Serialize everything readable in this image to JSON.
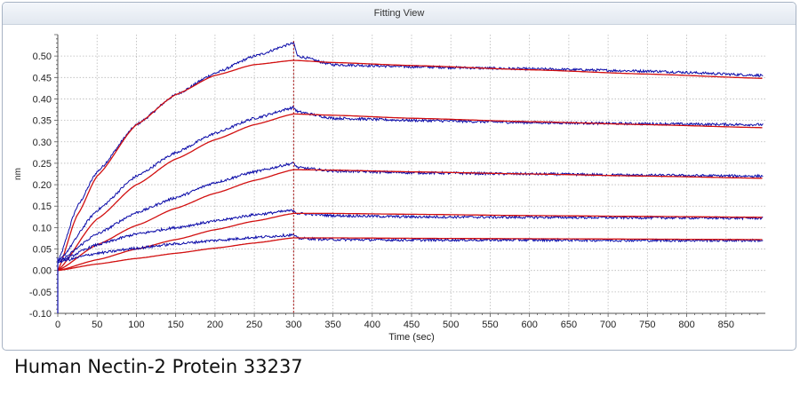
{
  "window": {
    "title": "Fitting View"
  },
  "caption": "Human Nectin-2 Protein 33237",
  "colors": {
    "measured": "#0a0aa8",
    "fit": "#d21010",
    "grid": "#b8b8b8",
    "marker": "#a00000"
  },
  "chart_data": {
    "type": "line",
    "title": "Fitting View",
    "xlabel": "Time (sec)",
    "ylabel": "nm",
    "xlim": [
      0,
      900
    ],
    "ylim": [
      -0.1,
      0.55
    ],
    "x_ticks": [
      0,
      50,
      100,
      150,
      200,
      250,
      300,
      350,
      400,
      450,
      500,
      550,
      600,
      650,
      700,
      750,
      800,
      850
    ],
    "y_ticks": [
      -0.1,
      -0.05,
      0.0,
      0.05,
      0.1,
      0.15,
      0.2,
      0.25,
      0.3,
      0.35,
      0.4,
      0.45,
      0.5
    ],
    "y_tick_labels": [
      "-0.10",
      "-0.05",
      "0.00",
      "0.05",
      "0.10",
      "0.15",
      "0.20",
      "0.25",
      "0.30",
      "0.35",
      "0.40",
      "0.45",
      "0.50"
    ],
    "grid": true,
    "marker_line_x": 300,
    "series": [
      {
        "kind": "measured",
        "x": [
          0,
          25,
          50,
          100,
          150,
          200,
          250,
          300,
          305,
          350,
          450,
          600,
          750,
          897
        ],
        "y": [
          0.02,
          0.15,
          0.23,
          0.34,
          0.41,
          0.46,
          0.5,
          0.53,
          0.5,
          0.48,
          0.475,
          0.47,
          0.465,
          0.455
        ]
      },
      {
        "kind": "fit",
        "x": [
          0,
          25,
          50,
          100,
          150,
          200,
          250,
          300,
          350,
          450,
          600,
          750,
          897
        ],
        "y": [
          0.0,
          0.13,
          0.22,
          0.34,
          0.41,
          0.455,
          0.48,
          0.49,
          0.485,
          0.478,
          0.468,
          0.458,
          0.448
        ]
      },
      {
        "kind": "measured",
        "x": [
          0,
          50,
          100,
          150,
          200,
          250,
          300,
          305,
          350,
          450,
          600,
          750,
          897
        ],
        "y": [
          0.02,
          0.14,
          0.22,
          0.275,
          0.32,
          0.355,
          0.38,
          0.37,
          0.355,
          0.35,
          0.345,
          0.342,
          0.34
        ]
      },
      {
        "kind": "fit",
        "x": [
          0,
          50,
          100,
          150,
          200,
          250,
          300,
          350,
          450,
          600,
          750,
          897
        ],
        "y": [
          0.0,
          0.12,
          0.2,
          0.26,
          0.305,
          0.34,
          0.365,
          0.362,
          0.355,
          0.347,
          0.34,
          0.333
        ]
      },
      {
        "kind": "measured",
        "x": [
          0,
          50,
          100,
          150,
          200,
          250,
          300,
          305,
          350,
          450,
          600,
          750,
          897
        ],
        "y": [
          0.02,
          0.085,
          0.135,
          0.17,
          0.205,
          0.23,
          0.25,
          0.24,
          0.232,
          0.228,
          0.225,
          0.222,
          0.22
        ]
      },
      {
        "kind": "fit",
        "x": [
          0,
          50,
          100,
          150,
          200,
          250,
          300,
          350,
          450,
          600,
          750,
          897
        ],
        "y": [
          0.0,
          0.06,
          0.105,
          0.145,
          0.18,
          0.21,
          0.235,
          0.234,
          0.23,
          0.225,
          0.22,
          0.215
        ]
      },
      {
        "kind": "measured",
        "x": [
          0,
          50,
          100,
          150,
          200,
          250,
          300,
          305,
          350,
          450,
          600,
          750,
          897
        ],
        "y": [
          0.02,
          0.06,
          0.085,
          0.1,
          0.115,
          0.13,
          0.14,
          0.133,
          0.128,
          0.125,
          0.124,
          0.123,
          0.122
        ]
      },
      {
        "kind": "fit",
        "x": [
          0,
          50,
          100,
          150,
          200,
          250,
          300,
          350,
          450,
          600,
          750,
          897
        ],
        "y": [
          0.0,
          0.025,
          0.05,
          0.072,
          0.095,
          0.115,
          0.133,
          0.133,
          0.131,
          0.128,
          0.126,
          0.124
        ]
      },
      {
        "kind": "measured",
        "x": [
          0,
          50,
          100,
          150,
          200,
          250,
          300,
          305,
          350,
          450,
          600,
          750,
          897
        ],
        "y": [
          0.02,
          0.04,
          0.052,
          0.062,
          0.07,
          0.077,
          0.083,
          0.075,
          0.072,
          0.071,
          0.071,
          0.07,
          0.07
        ]
      },
      {
        "kind": "fit",
        "x": [
          0,
          50,
          100,
          150,
          200,
          250,
          300,
          350,
          450,
          600,
          750,
          897
        ],
        "y": [
          0.0,
          0.015,
          0.028,
          0.04,
          0.052,
          0.064,
          0.076,
          0.076,
          0.075,
          0.074,
          0.073,
          0.072
        ]
      }
    ]
  }
}
